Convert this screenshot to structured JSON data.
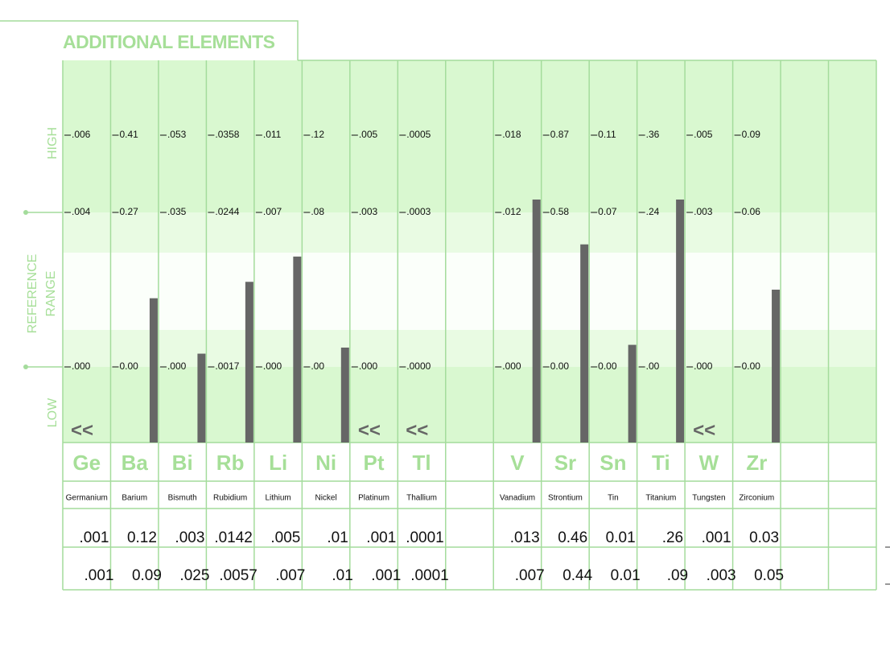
{
  "title": "ADDITIONAL ELEMENTS",
  "axis_labels": {
    "high": "HIGH",
    "reference": "REFERENCE",
    "range": "RANGE",
    "low": "LOW"
  },
  "columns": [
    {
      "symbol": "Ge",
      "name": "Germanium",
      "high": ".006",
      "ref_high": ".004",
      "ref_low": ".000",
      "results": [
        ".001",
        ".001"
      ],
      "marker": "<<"
    },
    {
      "symbol": "Ba",
      "name": "Barium",
      "high": "0.41",
      "ref_high": "0.27",
      "ref_low": "0.00",
      "results": [
        "0.12",
        "0.09"
      ]
    },
    {
      "symbol": "Bi",
      "name": "Bismuth",
      "high": ".053",
      "ref_high": ".035",
      "ref_low": ".000",
      "results": [
        ".003",
        ".025"
      ]
    },
    {
      "symbol": "Rb",
      "name": "Rubidium",
      "high": ".0358",
      "ref_high": ".0244",
      "ref_low": ".0017",
      "results": [
        ".0142",
        ".0057"
      ]
    },
    {
      "symbol": "Li",
      "name": "Lithium",
      "high": ".011",
      "ref_high": ".007",
      "ref_low": ".000",
      "results": [
        ".005",
        ".007"
      ]
    },
    {
      "symbol": "Ni",
      "name": "Nickel",
      "high": ".12",
      "ref_high": ".08",
      "ref_low": ".00",
      "results": [
        ".01",
        ".01"
      ]
    },
    {
      "symbol": "Pt",
      "name": "Platinum",
      "high": ".005",
      "ref_high": ".003",
      "ref_low": ".000",
      "results": [
        ".001",
        ".001"
      ],
      "marker": "<<"
    },
    {
      "symbol": "Tl",
      "name": "Thallium",
      "high": ".0005",
      "ref_high": ".0003",
      "ref_low": ".0000",
      "results": [
        ".0001",
        ".0001"
      ],
      "marker": "<<"
    },
    null,
    {
      "symbol": "V",
      "name": "Vanadium",
      "high": ".018",
      "ref_high": ".012",
      "ref_low": ".000",
      "results": [
        ".013",
        ".007"
      ]
    },
    {
      "symbol": "Sr",
      "name": "Strontium",
      "high": "0.87",
      "ref_high": "0.58",
      "ref_low": "0.00",
      "results": [
        "0.46",
        "0.44"
      ]
    },
    {
      "symbol": "Sn",
      "name": "Tin",
      "high": "0.11",
      "ref_high": "0.07",
      "ref_low": "0.00",
      "results": [
        "0.01",
        "0.01"
      ]
    },
    {
      "symbol": "Ti",
      "name": "Titanium",
      "high": ".36",
      "ref_high": ".24",
      "ref_low": ".00",
      "results": [
        ".26",
        ".09"
      ]
    },
    {
      "symbol": "W",
      "name": "Tungsten",
      "high": ".005",
      "ref_high": ".003",
      "ref_low": ".000",
      "results": [
        ".001",
        ".003"
      ],
      "marker": "<<"
    },
    {
      "symbol": "Zr",
      "name": "Zirconium",
      "high": "0.09",
      "ref_high": "0.06",
      "ref_low": "0.00",
      "results": [
        "0.03",
        "0.05"
      ]
    },
    null,
    null
  ]
}
